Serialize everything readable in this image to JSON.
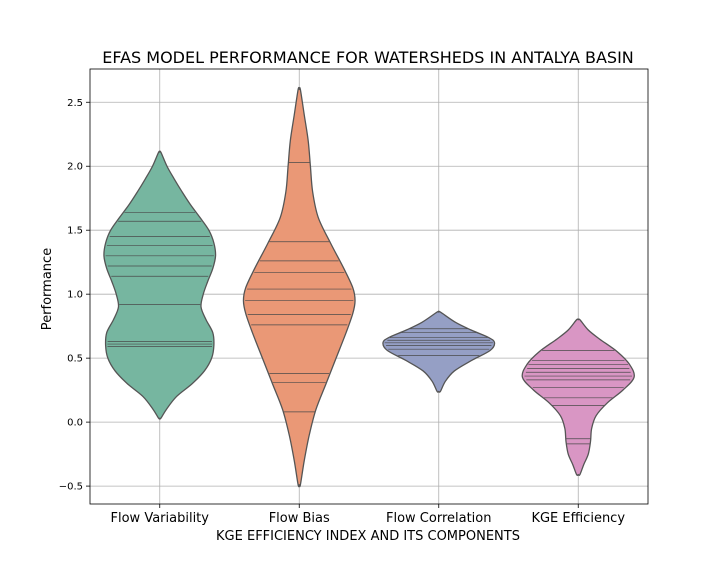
{
  "chart_data": {
    "type": "violin",
    "title": "EFAS MODEL PERFORMANCE FOR WATERSHEDS IN ANTALYA BASIN",
    "xlabel": "KGE EFFICIENCY INDEX AND ITS COMPONENTS",
    "ylabel": "Performance",
    "ylim": [
      -0.64,
      2.76
    ],
    "yticks": [
      -0.5,
      0.0,
      0.5,
      1.0,
      1.5,
      2.0,
      2.5
    ],
    "ytick_labels": [
      "−0.5",
      "0.0",
      "0.5",
      "1.0",
      "1.5",
      "2.0",
      "2.5"
    ],
    "grid": true,
    "categories": [
      "Flow Variability",
      "Flow Bias",
      "Flow Correlation",
      "KGE Efficiency"
    ],
    "series": [
      {
        "category": "Flow Variability",
        "color": "#76b6a0",
        "range": [
          0.03,
          2.11
        ],
        "observations": [
          0.59,
          0.61,
          0.63,
          0.92,
          1.14,
          1.22,
          1.3,
          1.38,
          1.45,
          1.57,
          1.64
        ],
        "profile": [
          [
            0.03,
            0.02
          ],
          [
            0.1,
            0.12
          ],
          [
            0.2,
            0.3
          ],
          [
            0.3,
            0.58
          ],
          [
            0.4,
            0.8
          ],
          [
            0.5,
            0.93
          ],
          [
            0.6,
            0.97
          ],
          [
            0.7,
            0.95
          ],
          [
            0.8,
            0.83
          ],
          [
            0.9,
            0.74
          ],
          [
            1.0,
            0.78
          ],
          [
            1.1,
            0.86
          ],
          [
            1.2,
            0.95
          ],
          [
            1.3,
            1.0
          ],
          [
            1.4,
            0.97
          ],
          [
            1.5,
            0.88
          ],
          [
            1.6,
            0.72
          ],
          [
            1.7,
            0.55
          ],
          [
            1.8,
            0.4
          ],
          [
            1.9,
            0.26
          ],
          [
            2.0,
            0.13
          ],
          [
            2.11,
            0.02
          ]
        ]
      },
      {
        "category": "Flow Bias",
        "color": "#ea9876",
        "range": [
          -0.49,
          2.6
        ],
        "observations": [
          0.08,
          0.31,
          0.38,
          0.76,
          0.84,
          0.95,
          1.04,
          1.17,
          1.26,
          1.41,
          2.03
        ],
        "profile": [
          [
            -0.49,
            0.02
          ],
          [
            -0.3,
            0.09
          ],
          [
            -0.1,
            0.18
          ],
          [
            0.1,
            0.3
          ],
          [
            0.3,
            0.48
          ],
          [
            0.5,
            0.66
          ],
          [
            0.7,
            0.84
          ],
          [
            0.85,
            0.96
          ],
          [
            0.95,
            1.0
          ],
          [
            1.05,
            0.96
          ],
          [
            1.2,
            0.8
          ],
          [
            1.4,
            0.56
          ],
          [
            1.6,
            0.34
          ],
          [
            1.8,
            0.24
          ],
          [
            2.0,
            0.2
          ],
          [
            2.2,
            0.16
          ],
          [
            2.4,
            0.09
          ],
          [
            2.6,
            0.02
          ]
        ]
      },
      {
        "category": "Flow Correlation",
        "color": "#959fc5",
        "range": [
          0.24,
          0.86
        ],
        "observations": [
          0.52,
          0.57,
          0.6,
          0.62,
          0.64,
          0.66,
          0.7,
          0.73
        ],
        "profile": [
          [
            0.24,
            0.03
          ],
          [
            0.32,
            0.12
          ],
          [
            0.4,
            0.28
          ],
          [
            0.48,
            0.58
          ],
          [
            0.56,
            0.92
          ],
          [
            0.62,
            1.0
          ],
          [
            0.66,
            0.9
          ],
          [
            0.72,
            0.58
          ],
          [
            0.78,
            0.3
          ],
          [
            0.86,
            0.03
          ]
        ]
      },
      {
        "category": "KGE Efficiency",
        "color": "#d996c4",
        "range": [
          -0.41,
          0.8
        ],
        "observations": [
          -0.17,
          -0.13,
          0.13,
          0.19,
          0.27,
          0.33,
          0.36,
          0.39,
          0.42,
          0.45,
          0.48,
          0.56
        ],
        "profile": [
          [
            -0.41,
            0.03
          ],
          [
            -0.33,
            0.1
          ],
          [
            -0.25,
            0.18
          ],
          [
            -0.15,
            0.22
          ],
          [
            -0.05,
            0.24
          ],
          [
            0.05,
            0.32
          ],
          [
            0.15,
            0.52
          ],
          [
            0.25,
            0.8
          ],
          [
            0.35,
            1.0
          ],
          [
            0.45,
            0.92
          ],
          [
            0.55,
            0.7
          ],
          [
            0.65,
            0.38
          ],
          [
            0.72,
            0.18
          ],
          [
            0.8,
            0.03
          ]
        ]
      }
    ]
  }
}
